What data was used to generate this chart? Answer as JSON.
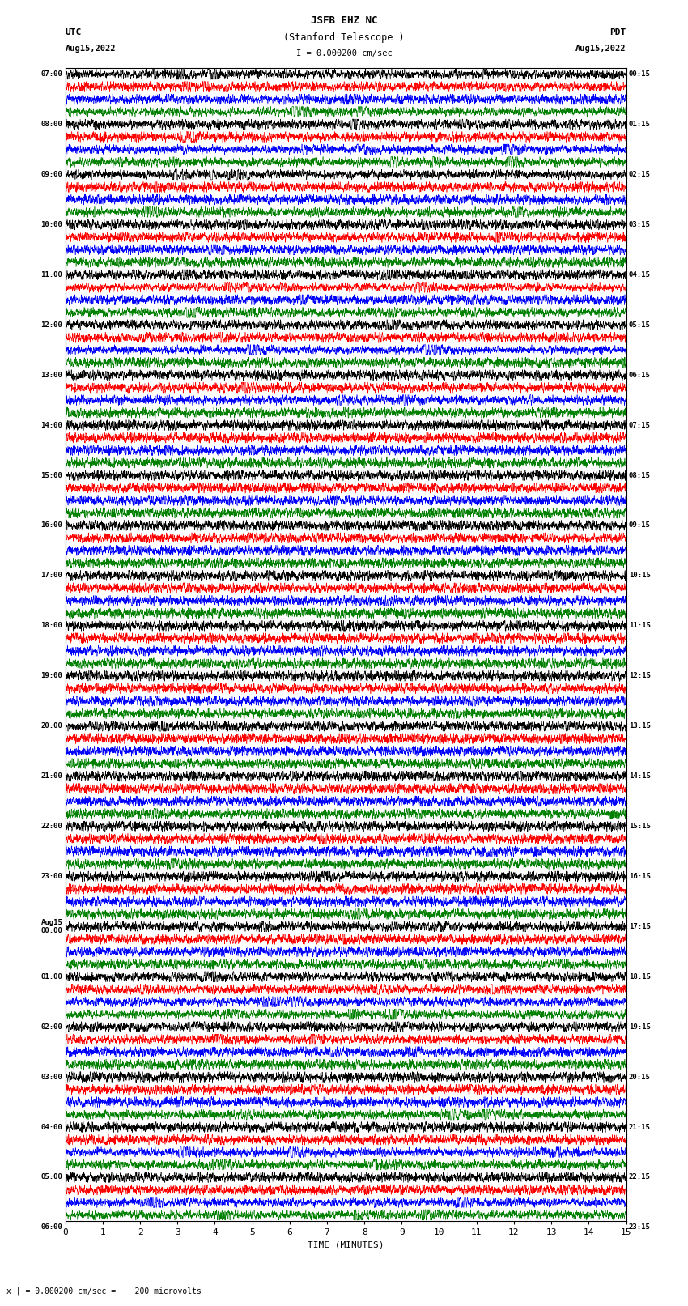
{
  "title_line1": "JSFB EHZ NC",
  "title_line2": "(Stanford Telescope )",
  "scale_label": "I = 0.000200 cm/sec",
  "left_header_line1": "UTC",
  "left_header_line2": "Aug15,2022",
  "right_header_line1": "PDT",
  "right_header_line2": "Aug15,2022",
  "bottom_label": "TIME (MINUTES)",
  "bottom_note": "x | = 0.000200 cm/sec =    200 microvolts",
  "x_ticks": [
    0,
    1,
    2,
    3,
    4,
    5,
    6,
    7,
    8,
    9,
    10,
    11,
    12,
    13,
    14,
    15
  ],
  "colors": [
    "black",
    "red",
    "blue",
    "green"
  ],
  "left_times": [
    "07:00",
    "",
    "",
    "",
    "08:00",
    "",
    "",
    "",
    "09:00",
    "",
    "",
    "",
    "10:00",
    "",
    "",
    "",
    "11:00",
    "",
    "",
    "",
    "12:00",
    "",
    "",
    "",
    "13:00",
    "",
    "",
    "",
    "14:00",
    "",
    "",
    "",
    "15:00",
    "",
    "",
    "",
    "16:00",
    "",
    "",
    "",
    "17:00",
    "",
    "",
    "",
    "18:00",
    "",
    "",
    "",
    "19:00",
    "",
    "",
    "",
    "20:00",
    "",
    "",
    "",
    "21:00",
    "",
    "",
    "",
    "22:00",
    "",
    "",
    "",
    "23:00",
    "",
    "",
    "",
    "Aug15\n00:00",
    "",
    "",
    "",
    "01:00",
    "",
    "",
    "",
    "02:00",
    "",
    "",
    "",
    "03:00",
    "",
    "",
    "",
    "04:00",
    "",
    "",
    "",
    "05:00",
    "",
    "",
    "",
    "06:00",
    "",
    "",
    ""
  ],
  "right_times": [
    "00:15",
    "",
    "",
    "",
    "01:15",
    "",
    "",
    "",
    "02:15",
    "",
    "",
    "",
    "03:15",
    "",
    "",
    "",
    "04:15",
    "",
    "",
    "",
    "05:15",
    "",
    "",
    "",
    "06:15",
    "",
    "",
    "",
    "07:15",
    "",
    "",
    "",
    "08:15",
    "",
    "",
    "",
    "09:15",
    "",
    "",
    "",
    "10:15",
    "",
    "",
    "",
    "11:15",
    "",
    "",
    "",
    "12:15",
    "",
    "",
    "",
    "13:15",
    "",
    "",
    "",
    "14:15",
    "",
    "",
    "",
    "15:15",
    "",
    "",
    "",
    "16:15",
    "",
    "",
    "",
    "17:15",
    "",
    "",
    "",
    "18:15",
    "",
    "",
    "",
    "19:15",
    "",
    "",
    "",
    "20:15",
    "",
    "",
    "",
    "21:15",
    "",
    "",
    "",
    "22:15",
    "",
    "",
    "",
    "23:15",
    "",
    "",
    ""
  ],
  "n_rows": 92,
  "n_colors": 4,
  "minutes": 15,
  "bg_color": "#ffffff",
  "fig_width": 8.5,
  "fig_height": 16.13,
  "dpi": 100
}
